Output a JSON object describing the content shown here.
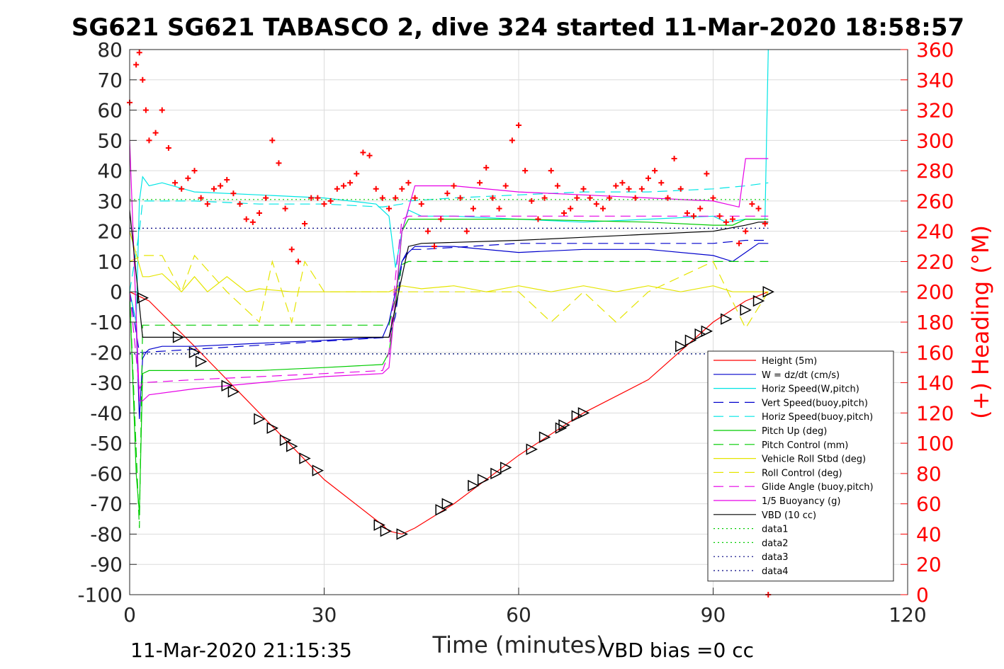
{
  "chart_data": {
    "type": "line",
    "title": "SG621 SG621 TABASCO 2, dive 324 started 11-Mar-2020 18:58:57",
    "xlabel": "Time (minutes)",
    "ylabel_right": "(+) Heading (°M)",
    "footer_left": "11-Mar-2020 21:15:35",
    "footer_right": "VBD bias =0 cc",
    "xlim": [
      0,
      120
    ],
    "ylim": [
      -100,
      80
    ],
    "ylim_right": [
      0,
      360
    ],
    "xticks": [
      "0",
      "30",
      "60",
      "90",
      "120"
    ],
    "yticks": [
      "80",
      "70",
      "60",
      "50",
      "40",
      "30",
      "20",
      "10",
      "0",
      "-10",
      "-20",
      "-30",
      "-40",
      "-50",
      "-60",
      "-70",
      "-80",
      "-90",
      "-100"
    ],
    "yticks_right": [
      "360",
      "340",
      "320",
      "300",
      "280",
      "260",
      "240",
      "220",
      "200",
      "180",
      "160",
      "140",
      "120",
      "100",
      "80",
      "60",
      "40",
      "20",
      "0"
    ],
    "grid": true,
    "legend_position": "lower-right",
    "colors": {
      "heading": "#ff0000",
      "right_axis": "#ff0000"
    },
    "series": [
      {
        "name": "Height (5m)",
        "color": "#ff0000",
        "style": "solid",
        "x": [
          0,
          2,
          3,
          10,
          20,
          30,
          39,
          40,
          42,
          44,
          50,
          60,
          70,
          80,
          90,
          95,
          98.5
        ],
        "y": [
          0,
          -2,
          -3,
          -18,
          -40,
          -62,
          -77,
          -79,
          -80,
          -78,
          -70,
          -54,
          -40,
          -29,
          -10,
          -3,
          0
        ]
      },
      {
        "name": "W = dz/dt (cm/s)",
        "color": "#0000cc",
        "style": "solid",
        "x": [
          0,
          1,
          1.5,
          2,
          2.5,
          3,
          5,
          10,
          20,
          30,
          39,
          40,
          42,
          43,
          44,
          50,
          60,
          70,
          80,
          90,
          93,
          95,
          97,
          98.5
        ],
        "y": [
          0,
          -10,
          -42,
          -22,
          -20,
          -19,
          -18,
          -18,
          -17,
          -16,
          -15,
          -10,
          10,
          13,
          15,
          15,
          13,
          14,
          14,
          12,
          10,
          13,
          16,
          16
        ]
      },
      {
        "name": "Horiz Speed(W,pitch)",
        "color": "#00e5e5",
        "style": "solid",
        "x": [
          0,
          1,
          1.5,
          2,
          3,
          5,
          10,
          20,
          30,
          38,
          40,
          41,
          42,
          43,
          45,
          50,
          60,
          70,
          80,
          90,
          92,
          95,
          98,
          98.5
        ],
        "y": [
          0,
          -10,
          30,
          38,
          35,
          36,
          33,
          32,
          31,
          29,
          25,
          8,
          20,
          27,
          25,
          25,
          24,
          23,
          24,
          25,
          23,
          24,
          24,
          80
        ]
      },
      {
        "name": "Vert Speed(buoy,pitch)",
        "color": "#0000cc",
        "style": "dashed",
        "x": [
          0,
          1.5,
          2,
          40,
          41,
          42,
          43,
          45,
          60,
          80,
          90,
          95,
          98.5
        ],
        "y": [
          0,
          -20,
          -20,
          -15,
          -8,
          10,
          14,
          14,
          16,
          16,
          16,
          17,
          17
        ]
      },
      {
        "name": "Horiz Speed(buoy,pitch)",
        "color": "#00e5e5",
        "style": "dashed",
        "x": [
          0,
          1.5,
          2,
          10,
          20,
          30,
          39,
          42,
          43,
          50,
          60,
          70,
          80,
          90,
          95,
          98.5
        ],
        "y": [
          0,
          20,
          30,
          30,
          29,
          29,
          28,
          29,
          30,
          31,
          32,
          33,
          33,
          34,
          35,
          36
        ]
      },
      {
        "name": "Pitch Up (deg)",
        "color": "#00cc00",
        "style": "solid",
        "x": [
          0,
          1,
          1.5,
          2,
          3,
          10,
          20,
          30,
          39,
          40,
          41,
          42,
          43,
          45,
          60,
          80,
          90,
          93,
          95,
          98.5
        ],
        "y": [
          0,
          -60,
          -73,
          -27,
          -26,
          -26,
          -26,
          -25,
          -24,
          -20,
          -5,
          20,
          24,
          24,
          24,
          23,
          22,
          22,
          24,
          24
        ]
      },
      {
        "name": "Pitch Control (mm)",
        "color": "#00cc00",
        "style": "dashed",
        "x": [
          0,
          1.5,
          2,
          40,
          41,
          42,
          43,
          98.5
        ],
        "y": [
          0,
          -78,
          -11,
          -11,
          -2,
          9,
          10,
          10
        ]
      },
      {
        "name": "Vehicle Roll Stbd (deg)",
        "color": "#e5e500",
        "style": "solid",
        "x": [
          0,
          2,
          3,
          5,
          8,
          10,
          12,
          15,
          18,
          20,
          25,
          28,
          30,
          35,
          40,
          42,
          45,
          50,
          55,
          60,
          65,
          70,
          75,
          80,
          85,
          90,
          93,
          95,
          98.5
        ],
        "y": [
          20,
          5,
          5,
          6,
          0,
          5,
          0,
          5,
          0,
          1,
          0,
          0,
          0,
          0,
          0,
          2,
          1,
          2,
          0,
          2,
          0,
          2,
          0,
          2,
          0,
          2,
          0,
          0,
          0
        ]
      },
      {
        "name": "Roll Control (deg)",
        "color": "#e5e500",
        "style": "dashed",
        "x": [
          0,
          2,
          3,
          5,
          8,
          10,
          15,
          20,
          22,
          25,
          27,
          30,
          40,
          42,
          50,
          60,
          65,
          70,
          75,
          80,
          90,
          95,
          98.5
        ],
        "y": [
          10,
          12,
          12,
          12,
          0,
          12,
          0,
          -10,
          10,
          -10,
          10,
          0,
          0,
          0,
          0,
          0,
          -10,
          0,
          -10,
          0,
          10,
          -12,
          0
        ]
      },
      {
        "name": "Glide Angle (buoy,pitch)",
        "color": "#e600e6",
        "style": "dashed",
        "x": [
          0,
          1.5,
          2,
          10,
          20,
          30,
          39,
          40,
          41,
          42,
          43,
          50,
          60,
          70,
          80,
          90,
          95,
          98.5
        ],
        "y": [
          0,
          -32,
          -30,
          -29,
          -28,
          -27,
          -26,
          -20,
          5,
          24,
          25,
          25,
          25,
          25,
          25,
          25,
          25,
          25
        ]
      },
      {
        "name": "1/5 Buoyancy (g)",
        "color": "#e600e6",
        "style": "solid",
        "x": [
          0,
          1.5,
          2,
          3,
          10,
          20,
          30,
          39,
          40,
          42,
          44,
          50,
          60,
          70,
          80,
          90,
          94,
          95,
          98.5
        ],
        "y": [
          50,
          -36,
          -36,
          -34,
          -32,
          -30,
          -28,
          -27,
          -25,
          20,
          35,
          35,
          33,
          32,
          31,
          30,
          28,
          44,
          44
        ]
      },
      {
        "name": "VBD (10 cc)",
        "color": "#000000",
        "style": "solid",
        "x": [
          0,
          2,
          40,
          41,
          42,
          43,
          45,
          60,
          70,
          80,
          90,
          95,
          97,
          98.5
        ],
        "y": [
          27,
          -15,
          -15,
          -5,
          5,
          15,
          16,
          17,
          18,
          19,
          20,
          22,
          23,
          23
        ]
      },
      {
        "name": "data1",
        "color": "#00cc00",
        "style": "dotted",
        "x": [
          0,
          98.5
        ],
        "y": [
          30.5,
          30.5
        ]
      },
      {
        "name": "data2",
        "color": "#00cc00",
        "style": "dotted",
        "x": [
          0,
          98.5
        ],
        "y": [
          -20.5,
          -20.5
        ]
      },
      {
        "name": "data3",
        "color": "#000080",
        "style": "dotted",
        "x": [
          0,
          98.5
        ],
        "y": [
          21,
          21
        ]
      },
      {
        "name": "data4",
        "color": "#000080",
        "style": "dotted",
        "x": [
          0,
          98.5
        ],
        "y": [
          -20.5,
          -20.5
        ]
      }
    ],
    "heading_series": {
      "axis": "right",
      "marker": "+",
      "color": "#ff0000",
      "x": [
        0,
        1,
        1.5,
        2,
        2.5,
        3,
        4,
        5,
        6,
        7,
        8,
        9,
        10,
        11,
        12,
        13,
        14,
        15,
        16,
        17,
        18,
        19,
        20,
        21,
        22,
        23,
        24,
        25,
        26,
        27,
        28,
        29,
        30,
        31,
        32,
        33,
        34,
        35,
        36,
        37,
        38,
        39,
        40,
        41,
        42,
        43,
        44,
        45,
        46,
        47,
        48,
        49,
        50,
        51,
        52,
        53,
        54,
        55,
        56,
        57,
        58,
        59,
        60,
        61,
        62,
        63,
        64,
        65,
        66,
        67,
        68,
        69,
        70,
        71,
        72,
        73,
        74,
        75,
        76,
        77,
        78,
        79,
        80,
        81,
        82,
        83,
        84,
        85,
        86,
        87,
        88,
        89,
        90,
        91,
        92,
        93,
        94,
        95,
        96,
        97,
        98,
        98.5
      ],
      "y": [
        325,
        350,
        358,
        340,
        320,
        300,
        305,
        320,
        295,
        272,
        268,
        275,
        280,
        262,
        258,
        268,
        270,
        274,
        265,
        258,
        248,
        246,
        252,
        262,
        300,
        285,
        255,
        228,
        220,
        245,
        262,
        262,
        258,
        260,
        268,
        270,
        272,
        278,
        292,
        290,
        268,
        262,
        255,
        262,
        268,
        272,
        262,
        258,
        240,
        230,
        248,
        265,
        270,
        262,
        240,
        255,
        272,
        282,
        262,
        255,
        270,
        300,
        310,
        280,
        260,
        248,
        262,
        280,
        270,
        252,
        255,
        262,
        268,
        262,
        258,
        255,
        262,
        270,
        272,
        268,
        262,
        268,
        275,
        280,
        272,
        262,
        288,
        268,
        252,
        250,
        255,
        278,
        262,
        250,
        246,
        248,
        232,
        240,
        258,
        255,
        245,
        0
      ]
    },
    "triangle_markers": {
      "marker": "triangle",
      "x": [
        2,
        7.5,
        10,
        11,
        15,
        16,
        20,
        22,
        24,
        25,
        27,
        29,
        38.5,
        39.5,
        42,
        48,
        49,
        53,
        54.5,
        56.5,
        58,
        62,
        64,
        66.5,
        67,
        69,
        70,
        85,
        86.5,
        88,
        89,
        92,
        95,
        97,
        98.5
      ],
      "y": [
        -2,
        -15,
        -20,
        -23,
        -31,
        -33,
        -42,
        -45,
        -49,
        -51,
        -55,
        -59,
        -77,
        -79,
        -80,
        -72,
        -70,
        -64,
        -62,
        -60,
        -58,
        -52,
        -48,
        -45,
        -44,
        -41,
        -40,
        -18,
        -16,
        -14,
        -13,
        -9,
        -6,
        -3,
        0
      ]
    }
  }
}
